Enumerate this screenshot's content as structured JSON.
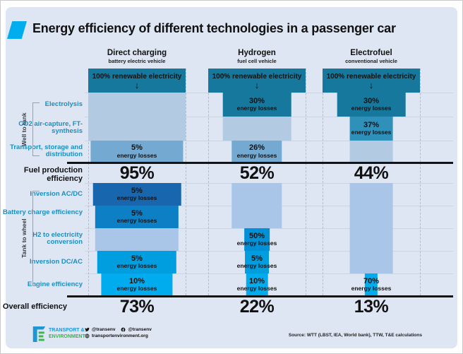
{
  "title": "Energy efficiency of different technologies in a passenger car",
  "arrow": "↓",
  "loss_note": "energy losses",
  "sections": {
    "well_to_tank": "Well to tank",
    "tank_to_wheel": "Tank to wheel"
  },
  "labels": {
    "fuel_production": "Fuel production efficiency",
    "overall": "Overall efficiency"
  },
  "columns": [
    {
      "title": "Direct charging",
      "subtitle": "battery electric vehicle",
      "input_label": "100% renewable electricity"
    },
    {
      "title": "Hydrogen",
      "subtitle": "fuel cell vehicle",
      "input_label": "100% renewable electricity"
    },
    {
      "title": "Electrofuel",
      "subtitle": "conventional vehicle",
      "input_label": "100% renewable electricity"
    }
  ],
  "chart_data": {
    "type": "funnel",
    "title": "Energy efficiency of different technologies in a passenger car",
    "columns": [
      "Direct charging (battery electric vehicle)",
      "Hydrogen (fuel cell vehicle)",
      "Electrofuel (conventional vehicle)"
    ],
    "input": "100% renewable electricity",
    "well_to_tank_steps": [
      {
        "step": "Electrolysis",
        "losses_pct": [
          null,
          30,
          30
        ]
      },
      {
        "step": "CO2 air-capture, FT-synthesis",
        "losses_pct": [
          null,
          null,
          37
        ]
      },
      {
        "step": "Transport, storage and distribution",
        "losses_pct": [
          5,
          26,
          null
        ]
      }
    ],
    "fuel_production_efficiency_pct": [
      95,
      52,
      44
    ],
    "tank_to_wheel_steps": [
      {
        "step": "Inversion AC/DC",
        "losses_pct": [
          5,
          null,
          null
        ]
      },
      {
        "step": "Battery charge efficiency",
        "losses_pct": [
          5,
          null,
          null
        ]
      },
      {
        "step": "H2 to electricity conversion",
        "losses_pct": [
          null,
          50,
          null
        ]
      },
      {
        "step": "Inversion DC/AC",
        "losses_pct": [
          5,
          5,
          null
        ]
      },
      {
        "step": "Engine efficiency",
        "losses_pct": [
          10,
          10,
          70
        ]
      }
    ],
    "overall_efficiency_pct": [
      73,
      22,
      13
    ]
  },
  "colors": {
    "card_bg": "#dee5f3",
    "accent": "#00aeef",
    "header": "#16789c",
    "pass_upper": "#b3cae3",
    "pass_lower": "#a9c6e8",
    "rows": {
      "electrolysis": "#16789c",
      "co2_synthesis": "#2f90ba",
      "transport": "#74aad2",
      "inversion_ac_dc": "#1766ae",
      "battery_charge": "#0d7fc5",
      "h2_conversion": "#0090d6",
      "inversion_dc_ac": "#009ddf",
      "engine": "#00acee"
    },
    "label_blue": "#1a8fc1",
    "brand_blue": "#1d96d4",
    "brand_green": "#3cb54a"
  },
  "footer": {
    "brand_line1": "TRANSPORT &",
    "brand_line2": "ENVIRONMENT",
    "twitter": "@transenv",
    "facebook": "@transenv",
    "website": "transportenvironment.org",
    "source": "Source: WTT (LBST, IEA, World bank), TTW, T&E calculations"
  }
}
